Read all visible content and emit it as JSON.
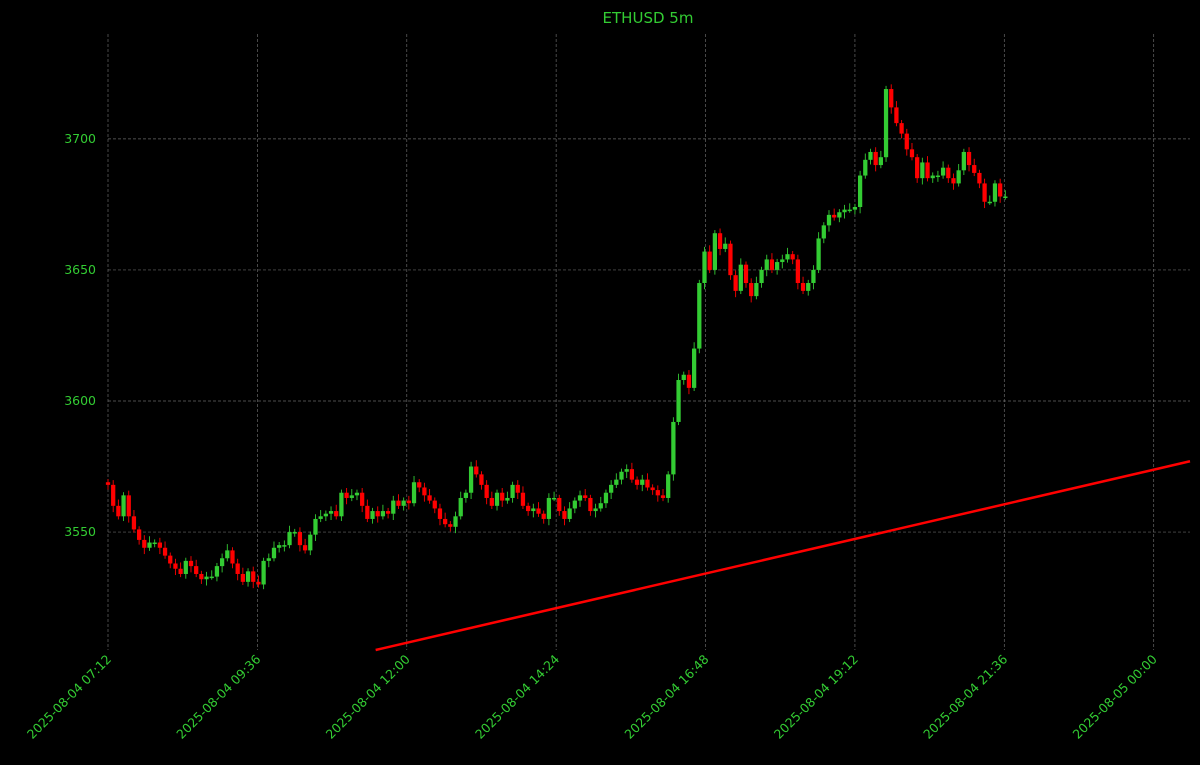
{
  "chart_data": {
    "type": "candlestick",
    "title": "ETHUSD 5m",
    "xlabel": "",
    "ylabel": "",
    "grid": true,
    "colors": {
      "background": "#000000",
      "text": "#33cc33",
      "up": "#33cc33",
      "down": "#ff0000",
      "trendline": "#ff0000"
    },
    "x_ticks": [
      "2025-08-04 07:12",
      "2025-08-04 09:36",
      "2025-08-04 12:00",
      "2025-08-04 14:24",
      "2025-08-04 16:48",
      "2025-08-04 19:12",
      "2025-08-04 21:36",
      "2025-08-05 00:00"
    ],
    "y_ticks": [
      3550,
      3600,
      3650,
      3700
    ],
    "xlim": [
      "2025-08-04 07:12",
      "2025-08-05 00:35"
    ],
    "ylim": [
      3505,
      3740
    ],
    "trendline": {
      "start": [
        "2025-08-04 11:30",
        3505
      ],
      "end": [
        "2025-08-05 00:35",
        3577
      ]
    },
    "start_time": "2025-08-04 07:12",
    "interval_minutes": 5,
    "closes": [
      3568,
      3560,
      3556,
      3564,
      3556,
      3551,
      3547,
      3544,
      3546,
      3546,
      3544,
      3541,
      3538,
      3536,
      3534,
      3539,
      3537,
      3534,
      3532,
      3533,
      3533,
      3537,
      3540,
      3543,
      3538,
      3534,
      3531,
      3535,
      3531,
      3530,
      3539,
      3540,
      3544,
      3545,
      3545,
      3550,
      3550,
      3545,
      3543,
      3549,
      3555,
      3556,
      3557,
      3558,
      3556,
      3565,
      3563,
      3564,
      3565,
      3560,
      3555,
      3558,
      3556,
      3558,
      3557,
      3562,
      3560,
      3562,
      3561,
      3569,
      3567,
      3564,
      3562,
      3559,
      3555,
      3553,
      3552,
      3556,
      3563,
      3565,
      3575,
      3572,
      3568,
      3563,
      3560,
      3565,
      3562,
      3563,
      3568,
      3565,
      3560,
      3558,
      3559,
      3557,
      3555,
      3563,
      3563,
      3558,
      3555,
      3559,
      3562,
      3564,
      3563,
      3558,
      3559,
      3561,
      3565,
      3568,
      3570,
      3573,
      3574,
      3570,
      3568,
      3570,
      3567,
      3566,
      3564,
      3563,
      3572,
      3592,
      3608,
      3610,
      3605,
      3620,
      3645,
      3657,
      3650,
      3664,
      3658,
      3660,
      3648,
      3642,
      3652,
      3645,
      3640,
      3645,
      3650,
      3654,
      3650,
      3653,
      3654,
      3656,
      3654,
      3645,
      3642,
      3645,
      3650,
      3662,
      3667,
      3671,
      3670,
      3672,
      3673,
      3673,
      3674,
      3686,
      3692,
      3695,
      3690,
      3693,
      3719,
      3712,
      3706,
      3702,
      3696,
      3693,
      3685,
      3691,
      3685,
      3686,
      3686,
      3689,
      3685,
      3683,
      3688,
      3695,
      3690,
      3687,
      3683,
      3676,
      3676,
      3683,
      3678,
      3678
    ]
  }
}
